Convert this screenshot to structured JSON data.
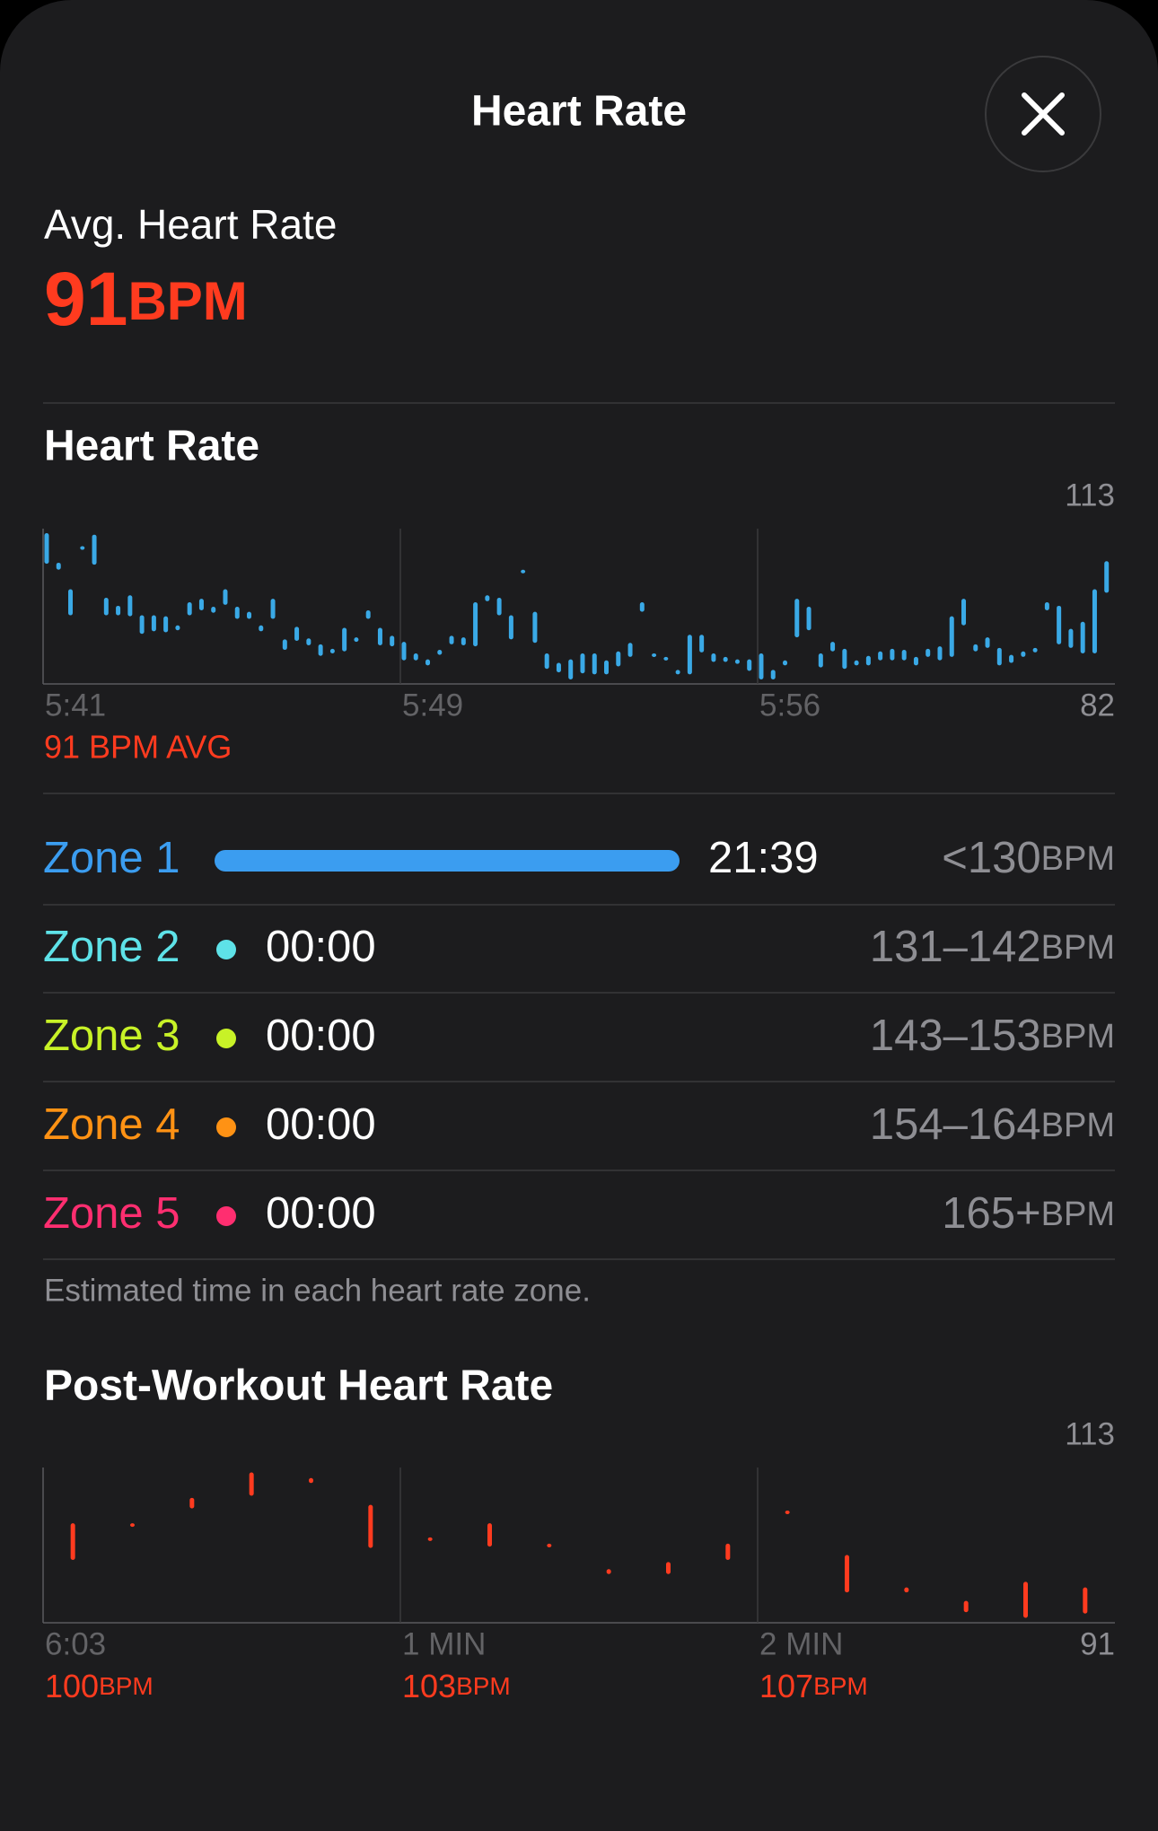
{
  "header": {
    "title": "Heart Rate"
  },
  "average": {
    "label": "Avg. Heart Rate",
    "value": 91,
    "unit": "BPM"
  },
  "heart_rate_chart": {
    "type": "range-bar",
    "title": "Heart Rate",
    "color": "#3aa9e6",
    "ylim": [
      82,
      113
    ],
    "yticks": [
      82,
      113
    ],
    "xticks": [
      "5:41",
      "5:49",
      "5:56"
    ],
    "avg_label": "91 BPM AVG",
    "low": [
      106.0,
      104.8,
      95.7,
      108.8,
      105.8,
      95.7,
      95.7,
      95.5,
      92.0,
      92.5,
      92.3,
      92.7,
      95.7,
      96.7,
      96.2,
      97.8,
      95.0,
      95.0,
      92.5,
      95.0,
      88.8,
      90.6,
      89.7,
      87.6,
      88.1,
      88.5,
      90.4,
      95.0,
      89.7,
      89.5,
      86.7,
      86.7,
      85.7,
      87.8,
      89.9,
      89.7,
      89.5,
      98.5,
      95.7,
      90.9,
      104.1,
      90.2,
      85.0,
      84.3,
      82.9,
      84.1,
      83.9,
      83.9,
      85.5,
      87.4,
      96.4,
      87.6,
      86.7,
      83.9,
      83.9,
      88.3,
      86.4,
      86.4,
      86.0,
      84.6,
      82.9,
      82.9,
      85.7,
      91.3,
      92.7,
      85.3,
      88.5,
      85.0,
      85.7,
      85.7,
      86.7,
      86.7,
      86.7,
      85.7,
      87.4,
      86.7,
      87.4,
      93.7,
      88.5,
      89.2,
      85.7,
      86.2,
      87.4,
      88.3,
      96.7,
      89.9,
      89.2,
      88.1,
      88.1,
      100.2
    ],
    "high": [
      112.1,
      106.2,
      100.9,
      109.5,
      111.8,
      99.2,
      97.6,
      99.7,
      95.7,
      95.7,
      95.5,
      93.7,
      98.3,
      99.0,
      97.4,
      100.9,
      97.4,
      96.4,
      93.7,
      99.0,
      90.9,
      93.4,
      91.1,
      89.9,
      89.0,
      93.2,
      91.3,
      96.7,
      93.2,
      91.6,
      90.4,
      88.1,
      86.9,
      88.8,
      91.6,
      91.3,
      98.3,
      99.7,
      99.2,
      95.7,
      104.8,
      96.4,
      88.1,
      86.2,
      86.9,
      88.1,
      88.1,
      86.7,
      88.5,
      90.2,
      98.3,
      88.1,
      87.4,
      84.8,
      91.8,
      91.8,
      88.1,
      87.4,
      86.9,
      86.9,
      88.1,
      84.8,
      86.7,
      99.0,
      97.4,
      88.1,
      90.4,
      89.0,
      86.7,
      87.6,
      88.5,
      89.0,
      88.8,
      87.4,
      89.0,
      89.5,
      95.5,
      99.0,
      89.9,
      91.3,
      89.2,
      87.8,
      88.5,
      89.2,
      98.3,
      97.6,
      93.0,
      94.4,
      100.9,
      106.5
    ]
  },
  "zones": {
    "unit": "BPM",
    "rows": [
      {
        "name": "Zone 1",
        "color": "#3b9df0",
        "time": "21:39",
        "range": "<130"
      },
      {
        "name": "Zone 2",
        "color": "#5ee2e8",
        "time": "00:00",
        "range": "131–142"
      },
      {
        "name": "Zone 3",
        "color": "#c8f227",
        "time": "00:00",
        "range": "143–153"
      },
      {
        "name": "Zone 4",
        "color": "#ff9214",
        "time": "00:00",
        "range": "154–164"
      },
      {
        "name": "Zone 5",
        "color": "#ff2e70",
        "time": "00:00",
        "range": "165+"
      }
    ],
    "note": "Estimated time in each heart rate zone."
  },
  "post_workout_chart": {
    "type": "range-bar",
    "title": "Post-Workout Heart Rate",
    "color": "#ff3b1f",
    "ylim": [
      91,
      113
    ],
    "yticks": [
      91,
      113
    ],
    "xticks": [
      "6:03",
      "1 MIN",
      "2 MIN"
    ],
    "minute_averages": [
      100,
      103,
      107
    ],
    "unit": "BPM",
    "low": [
      99.9,
      104.6,
      107.2,
      109.0,
      110.8,
      101.6,
      102.6,
      101.8,
      101.8,
      97.9,
      97.9,
      99.9,
      106.4,
      95.3,
      95.3,
      92.5,
      91.7,
      92.3
    ],
    "high": [
      105.1,
      105.1,
      108.7,
      112.3,
      111.5,
      107.7,
      103.1,
      105.1,
      102.2,
      98.6,
      99.6,
      102.2,
      106.9,
      100.6,
      96.0,
      94.1,
      96.8,
      96.0
    ]
  }
}
